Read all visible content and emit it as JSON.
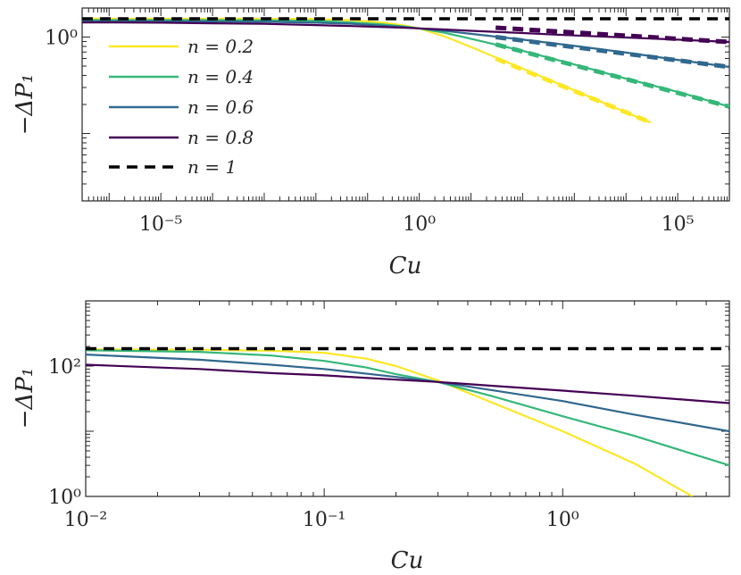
{
  "chart_data": [
    {
      "type": "line",
      "xscale": "log",
      "yscale": "log",
      "xlabel": "Cu",
      "ylabel": "−ΔP₁",
      "xlim": [
        3e-07,
        1000000.0
      ],
      "ylim": [
        0.02,
        2
      ],
      "xticks": [
        {
          "value": 1e-05,
          "label": "10⁻⁵"
        },
        {
          "value": 1,
          "label": "10⁰"
        },
        {
          "value": 100000.0,
          "label": "10⁵"
        }
      ],
      "yticks": [
        {
          "value": 1,
          "label": "10⁰"
        }
      ],
      "legend": {
        "position": "top-left"
      },
      "series": [
        {
          "name": "n = 0.2",
          "color": "#fde725",
          "style": "solid",
          "x": [
            3e-07,
            1e-06,
            1e-05,
            0.0001,
            0.001,
            0.01,
            0.05,
            0.2,
            0.5,
            1,
            3,
            10,
            100,
            1000,
            10000,
            30000
          ],
          "y": [
            1.55,
            1.55,
            1.55,
            1.55,
            1.55,
            1.54,
            1.5,
            1.41,
            1.32,
            1.23,
            1.02,
            0.79,
            0.47,
            0.28,
            0.165,
            0.13
          ]
        },
        {
          "name": "n = 0.4",
          "color": "#35b779",
          "style": "solid",
          "x": [
            3e-07,
            1e-06,
            1e-05,
            0.0001,
            0.001,
            0.01,
            0.05,
            0.2,
            0.5,
            1,
            3,
            10,
            100,
            1000,
            10000,
            100000,
            1000000
          ],
          "y": [
            1.5,
            1.5,
            1.5,
            1.5,
            1.49,
            1.47,
            1.42,
            1.35,
            1.29,
            1.23,
            1.11,
            0.96,
            0.72,
            0.52,
            0.37,
            0.27,
            0.19
          ]
        },
        {
          "name": "n = 0.6",
          "color": "#31688e",
          "style": "solid",
          "x": [
            3e-07,
            1e-06,
            1e-05,
            0.0001,
            0.001,
            0.01,
            0.05,
            0.2,
            0.5,
            1,
            3,
            10,
            100,
            1000,
            10000,
            100000,
            1000000
          ],
          "y": [
            1.46,
            1.46,
            1.46,
            1.45,
            1.44,
            1.41,
            1.37,
            1.31,
            1.27,
            1.23,
            1.16,
            1.08,
            0.94,
            0.81,
            0.69,
            0.58,
            0.49
          ]
        },
        {
          "name": "n = 0.8",
          "color": "#440154",
          "style": "solid",
          "x": [
            3e-07,
            1e-06,
            1e-05,
            0.0001,
            0.001,
            0.01,
            0.05,
            0.2,
            0.5,
            1,
            3,
            10,
            100,
            1000,
            10000,
            100000,
            1000000
          ],
          "y": [
            1.42,
            1.42,
            1.41,
            1.39,
            1.37,
            1.33,
            1.3,
            1.27,
            1.25,
            1.23,
            1.2,
            1.16,
            1.1,
            1.04,
            0.99,
            0.94,
            0.89
          ]
        },
        {
          "name": "n = 1",
          "color": "#000000",
          "style": "dashed",
          "x": [
            3e-07,
            1000000
          ],
          "y": [
            1.55,
            1.55
          ]
        }
      ],
      "asymptotes": [
        {
          "series": "n = 0.2",
          "color": "#fde725",
          "x": [
            30,
            30000
          ],
          "y": [
            0.6,
            0.13
          ]
        },
        {
          "series": "n = 0.4",
          "color": "#35b779",
          "x": [
            30,
            1000000
          ],
          "y": [
            0.84,
            0.19
          ]
        },
        {
          "series": "n = 0.6",
          "color": "#31688e",
          "x": [
            30,
            1000000
          ],
          "y": [
            1.0,
            0.49
          ]
        },
        {
          "series": "n = 0.8",
          "color": "#440154",
          "x": [
            30,
            1000000
          ],
          "y": [
            1.25,
            0.89
          ]
        }
      ]
    },
    {
      "type": "line",
      "xscale": "log",
      "yscale": "log",
      "xlabel": "Cu",
      "ylabel": "−ΔP₁",
      "xlim": [
        0.01,
        5
      ],
      "ylim": [
        1,
        1000
      ],
      "xticks": [
        {
          "value": 0.01,
          "label": "10⁻²"
        },
        {
          "value": 0.1,
          "label": "10⁻¹"
        },
        {
          "value": 1,
          "label": "10⁰"
        }
      ],
      "yticks": [
        {
          "value": 1,
          "label": "10⁰"
        },
        {
          "value": 100,
          "label": "10²"
        }
      ],
      "series": [
        {
          "name": "n = 0.2",
          "color": "#fde725",
          "style": "solid",
          "x": [
            0.01,
            0.03,
            0.06,
            0.1,
            0.15,
            0.2,
            0.3,
            0.5,
            1,
            2,
            3.5
          ],
          "y": [
            180,
            178,
            172,
            160,
            130,
            100,
            60,
            28,
            10,
            3.2,
            1
          ]
        },
        {
          "name": "n = 0.4",
          "color": "#35b779",
          "style": "solid",
          "x": [
            0.01,
            0.03,
            0.06,
            0.1,
            0.15,
            0.2,
            0.3,
            0.5,
            1,
            2,
            5
          ],
          "y": [
            175,
            165,
            145,
            120,
            95,
            75,
            57,
            35,
            17,
            8.5,
            3
          ]
        },
        {
          "name": "n = 0.6",
          "color": "#31688e",
          "style": "solid",
          "x": [
            0.01,
            0.03,
            0.06,
            0.1,
            0.2,
            0.3,
            0.5,
            1,
            2,
            5
          ],
          "y": [
            150,
            125,
            105,
            90,
            68,
            57,
            43,
            29,
            18,
            10
          ]
        },
        {
          "name": "n = 0.8",
          "color": "#440154",
          "style": "solid",
          "x": [
            0.01,
            0.03,
            0.06,
            0.1,
            0.2,
            0.3,
            0.5,
            1,
            2,
            5
          ],
          "y": [
            105,
            90,
            78,
            72,
            62,
            57,
            50,
            42,
            35,
            27
          ]
        },
        {
          "name": "n = 1",
          "color": "#000000",
          "style": "dashed",
          "x": [
            0.01,
            5
          ],
          "y": [
            185,
            185
          ]
        }
      ]
    }
  ]
}
